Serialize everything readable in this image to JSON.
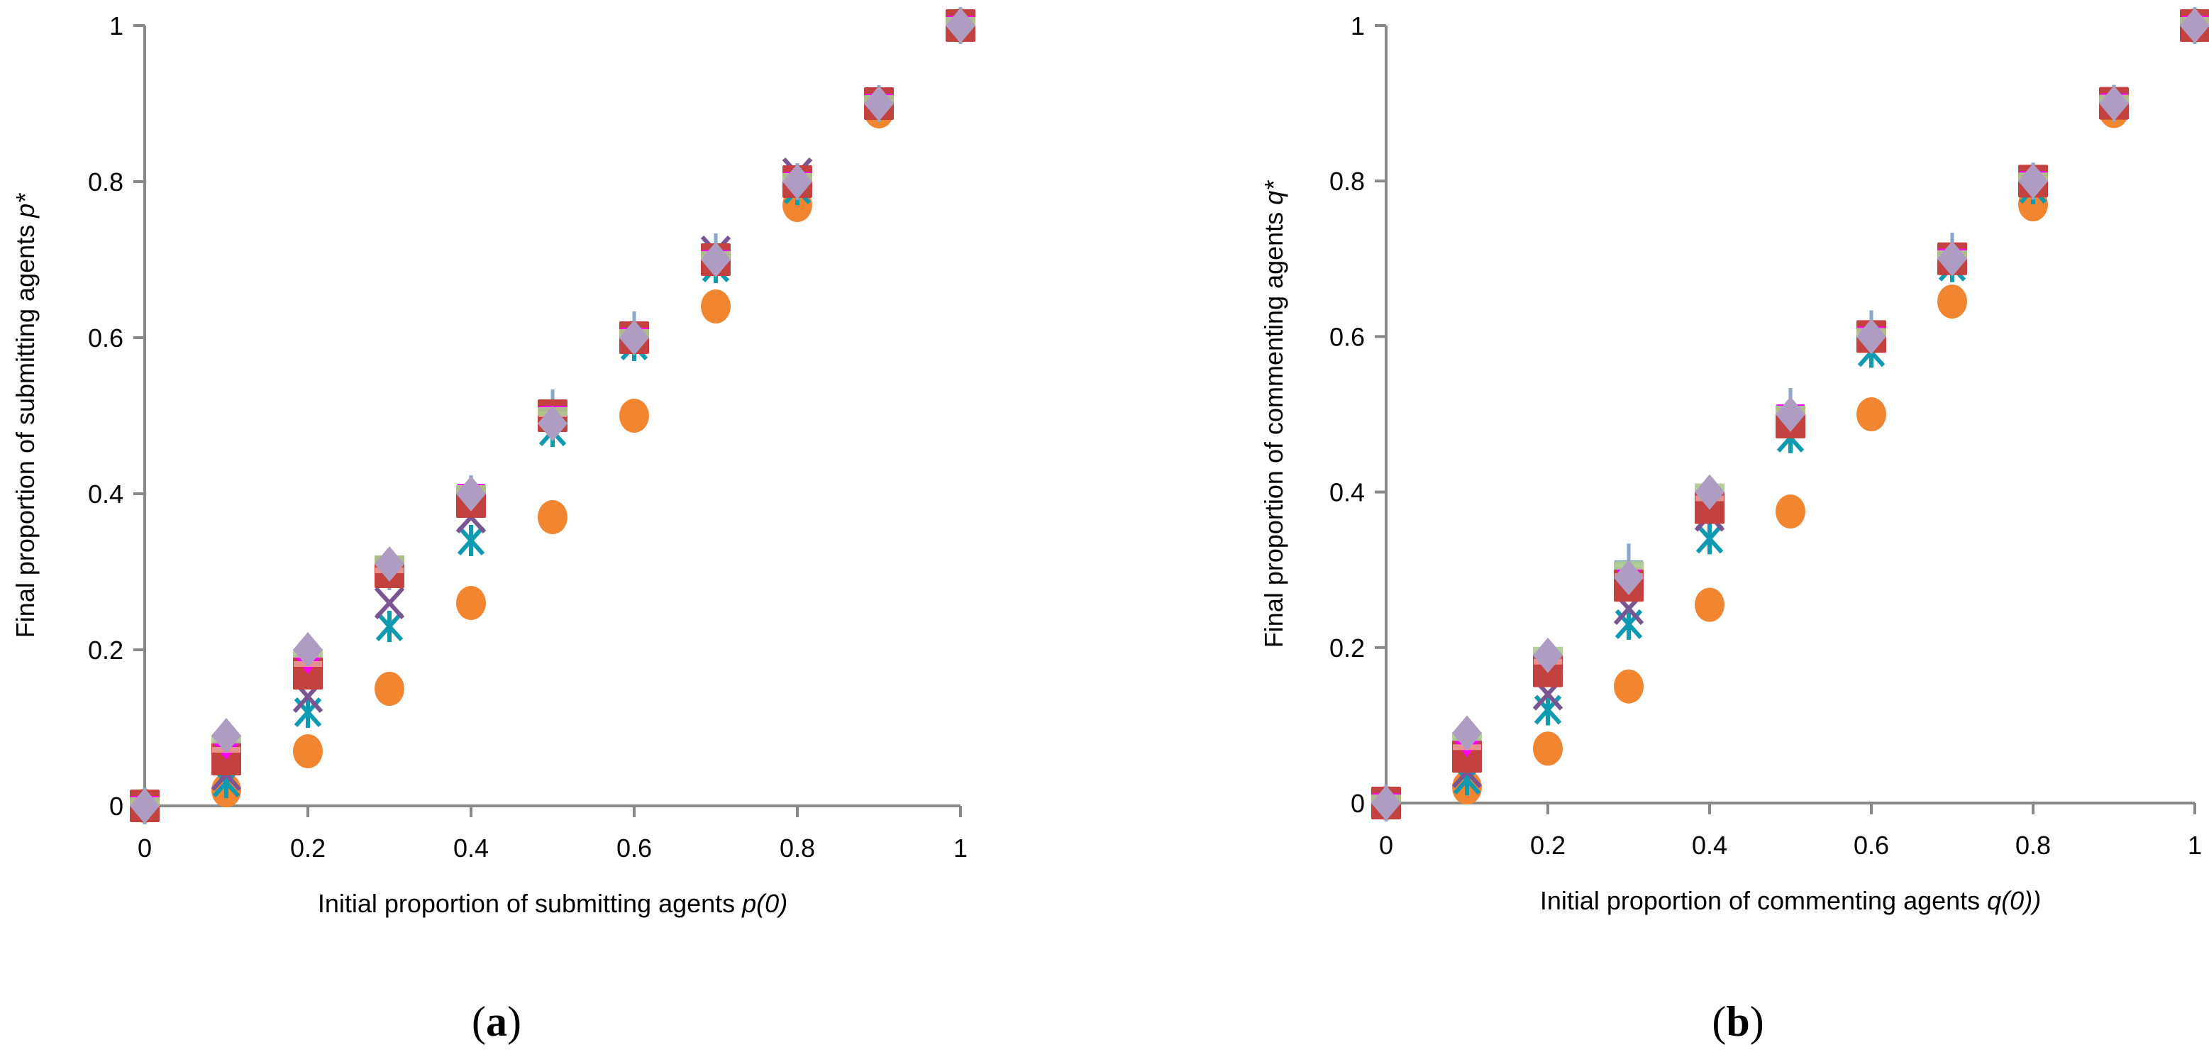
{
  "chart_data": [
    {
      "type": "scatter",
      "panel_label": "a",
      "title": "",
      "xlabel": {
        "text": "Initial proportion of submitting agents ",
        "var": "p(0)"
      },
      "ylabel": {
        "text": "Final proportion of submitting agents ",
        "var": "p*"
      },
      "xlim": [
        0,
        1
      ],
      "ylim": [
        0,
        1
      ],
      "xticks": [
        "0",
        "0.2",
        "0.4",
        "0.6",
        "0.8",
        "1"
      ],
      "yticks": [
        "0",
        "0.2",
        "0.4",
        "0.6",
        "0.8",
        "1"
      ],
      "grid": false,
      "x": [
        0,
        0.1,
        0.2,
        0.3,
        0.4,
        0.5,
        0.6,
        0.7,
        0.8,
        0.9,
        1
      ],
      "series": [
        {
          "marker": "circle",
          "color": "#F28530",
          "values": [
            0,
            0.02,
            0.07,
            0.15,
            0.26,
            0.37,
            0.5,
            0.64,
            0.77,
            0.89,
            1
          ]
        },
        {
          "marker": "asterisk",
          "color": "#0E9AB0",
          "values": [
            0,
            0.03,
            0.12,
            0.23,
            0.34,
            0.48,
            0.59,
            0.69,
            0.79,
            0.9,
            1
          ]
        },
        {
          "marker": "x",
          "color": "#7A5594",
          "values": [
            0,
            0.04,
            0.14,
            0.26,
            0.37,
            0.5,
            0.6,
            0.71,
            0.81,
            0.9,
            1
          ]
        },
        {
          "marker": "plus",
          "color": "#8AA8CC",
          "values": [
            0,
            0.07,
            0.18,
            0.3,
            0.4,
            0.51,
            0.61,
            0.71,
            0.8,
            0.9,
            1
          ]
        },
        {
          "marker": "square",
          "color": "#C3423F",
          "values": [
            0,
            0.06,
            0.17,
            0.3,
            0.39,
            0.5,
            0.6,
            0.7,
            0.8,
            0.9,
            1
          ]
        },
        {
          "marker": "triangle",
          "color": "#FF00FF",
          "values": [
            0,
            0.07,
            0.18,
            0.3,
            0.4,
            0.5,
            0.6,
            0.7,
            0.8,
            0.9,
            1
          ]
        },
        {
          "marker": "dash",
          "color": "#E6928F",
          "values": [
            0,
            0.07,
            0.18,
            0.3,
            0.4,
            0.5,
            0.6,
            0.7,
            0.8,
            0.9,
            1
          ]
        },
        {
          "marker": "bar",
          "color": "#AACB8C",
          "values": [
            0,
            0.08,
            0.19,
            0.31,
            0.4,
            0.5,
            0.6,
            0.7,
            0.8,
            0.9,
            1
          ]
        },
        {
          "marker": "diamond",
          "color": "#AF9CC2",
          "values": [
            0,
            0.09,
            0.2,
            0.31,
            0.4,
            0.49,
            0.6,
            0.7,
            0.8,
            0.9,
            1
          ]
        }
      ]
    },
    {
      "type": "scatter",
      "panel_label": "b",
      "title": "",
      "xlabel": {
        "text": "Initial proportion of commenting agents ",
        "var": "q(0))"
      },
      "ylabel": {
        "text": "Final proportion of commenting agents ",
        "var": "q*"
      },
      "xlim": [
        0,
        1
      ],
      "ylim": [
        0,
        1
      ],
      "xticks": [
        "0",
        "0.2",
        "0.4",
        "0.6",
        "0.8",
        "1"
      ],
      "yticks": [
        "0",
        "0.2",
        "0.4",
        "0.6",
        "0.8",
        "1"
      ],
      "grid": false,
      "x": [
        0,
        0.1,
        0.2,
        0.3,
        0.4,
        0.5,
        0.6,
        0.7,
        0.8,
        0.9,
        1
      ],
      "series": [
        {
          "marker": "circle",
          "color": "#F28530",
          "values": [
            0,
            0.02,
            0.07,
            0.15,
            0.255,
            0.375,
            0.5,
            0.645,
            0.77,
            0.89,
            1
          ]
        },
        {
          "marker": "asterisk",
          "color": "#0E9AB0",
          "values": [
            0,
            0.03,
            0.12,
            0.23,
            0.34,
            0.47,
            0.58,
            0.69,
            0.79,
            0.9,
            1
          ]
        },
        {
          "marker": "x",
          "color": "#7A5594",
          "values": [
            0,
            0.04,
            0.14,
            0.25,
            0.37,
            0.49,
            0.6,
            0.7,
            0.8,
            0.9,
            1
          ]
        },
        {
          "marker": "plus",
          "color": "#8AA8CC",
          "values": [
            0,
            0.07,
            0.18,
            0.31,
            0.39,
            0.51,
            0.61,
            0.71,
            0.8,
            0.9,
            1
          ]
        },
        {
          "marker": "square",
          "color": "#C3423F",
          "values": [
            0,
            0.06,
            0.17,
            0.28,
            0.38,
            0.49,
            0.6,
            0.7,
            0.8,
            0.9,
            1
          ]
        },
        {
          "marker": "triangle",
          "color": "#FF00FF",
          "values": [
            0,
            0.07,
            0.18,
            0.29,
            0.39,
            0.5,
            0.6,
            0.7,
            0.8,
            0.9,
            1
          ]
        },
        {
          "marker": "dash",
          "color": "#E6928F",
          "values": [
            0,
            0.07,
            0.18,
            0.29,
            0.39,
            0.5,
            0.6,
            0.7,
            0.8,
            0.9,
            1
          ]
        },
        {
          "marker": "bar",
          "color": "#AACB8C",
          "values": [
            0,
            0.08,
            0.19,
            0.3,
            0.4,
            0.5,
            0.6,
            0.7,
            0.8,
            0.9,
            1
          ]
        },
        {
          "marker": "diamond",
          "color": "#AF9CC2",
          "values": [
            0,
            0.09,
            0.19,
            0.29,
            0.4,
            0.5,
            0.6,
            0.7,
            0.8,
            0.9,
            1
          ]
        }
      ]
    }
  ],
  "axis_color": "#898989"
}
